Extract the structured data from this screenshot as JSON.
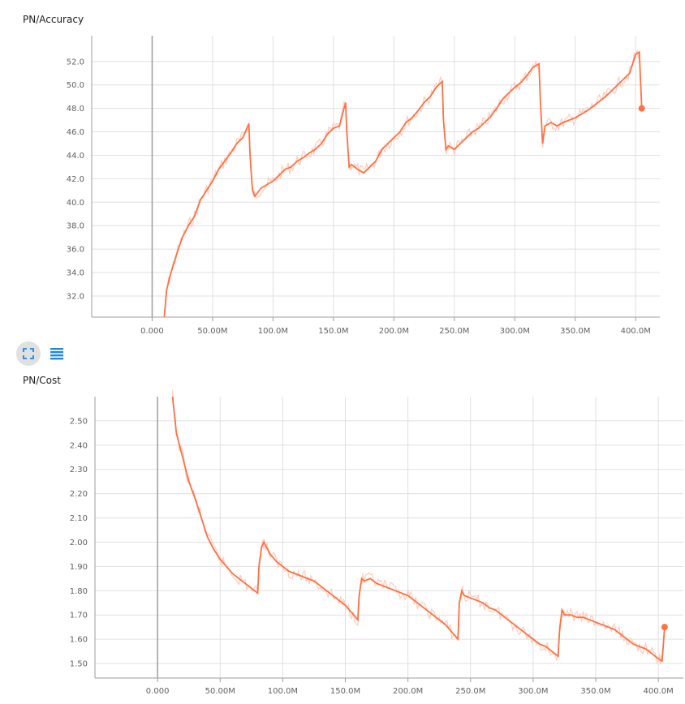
{
  "colors": {
    "line": "#ff7043",
    "line_light": "#ffccbc",
    "grid": "#e0e0e0",
    "axis": "#9e9e9e",
    "icon": "#1e88e5"
  },
  "controls": {
    "fit_icon": "fit-to-data-icon",
    "data_table_icon": "data-table-icon"
  },
  "chart_data": [
    {
      "type": "line",
      "title": "PN/Accuracy",
      "xlabel": "",
      "ylabel": "",
      "xlim": [
        -50,
        420
      ],
      "ylim": [
        30.2,
        54.2
      ],
      "x_ticks": [
        0,
        50,
        100,
        150,
        200,
        250,
        300,
        350,
        400
      ],
      "x_tick_labels": [
        "0.000",
        "50.00M",
        "100.0M",
        "150.0M",
        "200.0M",
        "250.0M",
        "300.0M",
        "350.0M",
        "400.0M"
      ],
      "y_ticks": [
        32,
        34,
        36,
        38,
        40,
        42,
        44,
        46,
        48,
        50,
        52
      ],
      "y_tick_labels": [
        "32.0",
        "34.0",
        "36.0",
        "38.0",
        "40.0",
        "42.0",
        "44.0",
        "46.0",
        "48.0",
        "50.0",
        "52.0"
      ],
      "grid": true,
      "series": [
        {
          "x": [
            10,
            12,
            15,
            20,
            25,
            30,
            35,
            40,
            45,
            50,
            55,
            60,
            65,
            70,
            75,
            80,
            81,
            83,
            85,
            90,
            95,
            100,
            105,
            110,
            115,
            120,
            125,
            130,
            135,
            140,
            145,
            150,
            155,
            160,
            161,
            163,
            165,
            170,
            175,
            180,
            185,
            190,
            195,
            200,
            205,
            210,
            215,
            220,
            225,
            230,
            235,
            240,
            241,
            243,
            245,
            250,
            255,
            260,
            265,
            270,
            275,
            280,
            285,
            290,
            295,
            300,
            305,
            310,
            315,
            320,
            321,
            323,
            325,
            330,
            335,
            340,
            345,
            350,
            355,
            360,
            365,
            370,
            375,
            380,
            385,
            390,
            395,
            400,
            403,
            405
          ],
          "y": [
            30.2,
            32.5,
            33.8,
            35.5,
            37.0,
            38.0,
            38.8,
            40.2,
            41.0,
            41.8,
            42.8,
            43.5,
            44.2,
            45.0,
            45.5,
            46.7,
            44.0,
            41.0,
            40.5,
            41.2,
            41.5,
            41.8,
            42.3,
            42.8,
            43.0,
            43.5,
            43.8,
            44.2,
            44.5,
            45.0,
            45.8,
            46.3,
            46.5,
            48.5,
            46.0,
            43.0,
            43.2,
            42.8,
            42.5,
            43.0,
            43.5,
            44.5,
            45.0,
            45.5,
            46.0,
            46.8,
            47.2,
            47.8,
            48.5,
            49.0,
            49.8,
            50.3,
            47.0,
            44.5,
            44.8,
            44.5,
            45.0,
            45.5,
            46.0,
            46.3,
            46.8,
            47.3,
            48.0,
            48.8,
            49.3,
            49.8,
            50.2,
            50.8,
            51.5,
            51.8,
            49.0,
            45.0,
            46.5,
            46.8,
            46.5,
            46.8,
            47.0,
            47.2,
            47.5,
            47.8,
            48.2,
            48.6,
            49.0,
            49.5,
            50.0,
            50.5,
            51.0,
            52.6,
            52.8,
            48.0
          ]
        }
      ]
    },
    {
      "type": "line",
      "title": "PN/Cost",
      "xlabel": "",
      "ylabel": "",
      "xlim": [
        -50,
        420
      ],
      "ylim": [
        1.44,
        2.6
      ],
      "x_ticks": [
        0,
        50,
        100,
        150,
        200,
        250,
        300,
        350,
        400
      ],
      "x_tick_labels": [
        "0.000",
        "50.00M",
        "100.0M",
        "150.0M",
        "200.0M",
        "250.0M",
        "300.0M",
        "350.0M",
        "400.0M"
      ],
      "y_ticks": [
        1.5,
        1.6,
        1.7,
        1.8,
        1.9,
        2.0,
        2.1,
        2.2,
        2.3,
        2.4,
        2.5
      ],
      "y_tick_labels": [
        "1.50",
        "1.60",
        "1.70",
        "1.80",
        "1.90",
        "2.00",
        "2.10",
        "2.20",
        "2.30",
        "2.40",
        "2.50"
      ],
      "grid": true,
      "series": [
        {
          "x": [
            12,
            15,
            20,
            25,
            30,
            35,
            40,
            45,
            50,
            55,
            60,
            65,
            70,
            75,
            80,
            81,
            83,
            85,
            90,
            95,
            100,
            105,
            110,
            115,
            120,
            125,
            130,
            135,
            140,
            145,
            150,
            155,
            160,
            161,
            163,
            165,
            170,
            175,
            180,
            185,
            190,
            195,
            200,
            205,
            210,
            215,
            220,
            225,
            230,
            235,
            240,
            241,
            243,
            245,
            250,
            255,
            260,
            265,
            270,
            275,
            280,
            285,
            290,
            295,
            300,
            305,
            310,
            315,
            320,
            321,
            323,
            325,
            330,
            335,
            340,
            345,
            350,
            355,
            360,
            365,
            370,
            375,
            380,
            385,
            390,
            395,
            400,
            403,
            405
          ],
          "y": [
            2.6,
            2.45,
            2.35,
            2.25,
            2.18,
            2.1,
            2.02,
            1.97,
            1.93,
            1.9,
            1.87,
            1.85,
            1.83,
            1.81,
            1.79,
            1.9,
            1.98,
            2.0,
            1.95,
            1.92,
            1.9,
            1.88,
            1.87,
            1.86,
            1.85,
            1.84,
            1.82,
            1.8,
            1.78,
            1.76,
            1.74,
            1.71,
            1.68,
            1.78,
            1.85,
            1.84,
            1.85,
            1.83,
            1.82,
            1.81,
            1.8,
            1.79,
            1.78,
            1.76,
            1.74,
            1.72,
            1.7,
            1.68,
            1.66,
            1.63,
            1.6,
            1.75,
            1.8,
            1.78,
            1.77,
            1.76,
            1.75,
            1.73,
            1.72,
            1.7,
            1.68,
            1.66,
            1.64,
            1.62,
            1.6,
            1.58,
            1.57,
            1.55,
            1.53,
            1.63,
            1.72,
            1.7,
            1.7,
            1.69,
            1.69,
            1.68,
            1.67,
            1.66,
            1.65,
            1.64,
            1.62,
            1.6,
            1.58,
            1.57,
            1.56,
            1.54,
            1.52,
            1.51,
            1.65
          ]
        }
      ]
    }
  ]
}
